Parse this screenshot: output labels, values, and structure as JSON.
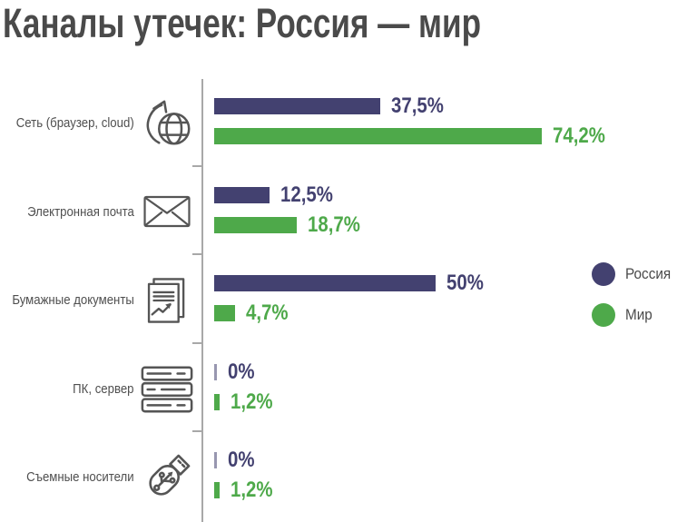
{
  "title": "Каналы утечек: Россия — мир",
  "legend": {
    "russia": "Россия",
    "world": "Мир"
  },
  "colors": {
    "russia": "#434170",
    "world": "#4EA94A",
    "text": "#4a4a4a",
    "axis": "#a8a8a8",
    "icon": "#555555"
  },
  "chart_data": {
    "type": "bar",
    "orientation": "horizontal",
    "title": "Каналы утечек: Россия — мир",
    "unit": "%",
    "xlim": [
      0,
      100
    ],
    "grid": false,
    "legend_position": "right-middle",
    "categories": [
      "Сеть (браузер, cloud)",
      "Электронная почта",
      "Бумажные документы",
      "ПК, сервер",
      "Съемные носители"
    ],
    "category_icons": [
      "globe-arrow-icon",
      "envelope-icon",
      "documents-icon",
      "server-icon",
      "usb-drive-icon"
    ],
    "series": [
      {
        "name": "Россия",
        "color": "#434170",
        "values": [
          37.5,
          12.5,
          50,
          0,
          0
        ],
        "labels": [
          "37,5%",
          "12,5%",
          "50%",
          "0%",
          "0%"
        ]
      },
      {
        "name": "Мир",
        "color": "#4EA94A",
        "values": [
          74.2,
          18.7,
          4.7,
          1.2,
          1.2
        ],
        "labels": [
          "74,2%",
          "18,7%",
          "4,7%",
          "1,2%",
          "1,2%"
        ]
      }
    ]
  }
}
